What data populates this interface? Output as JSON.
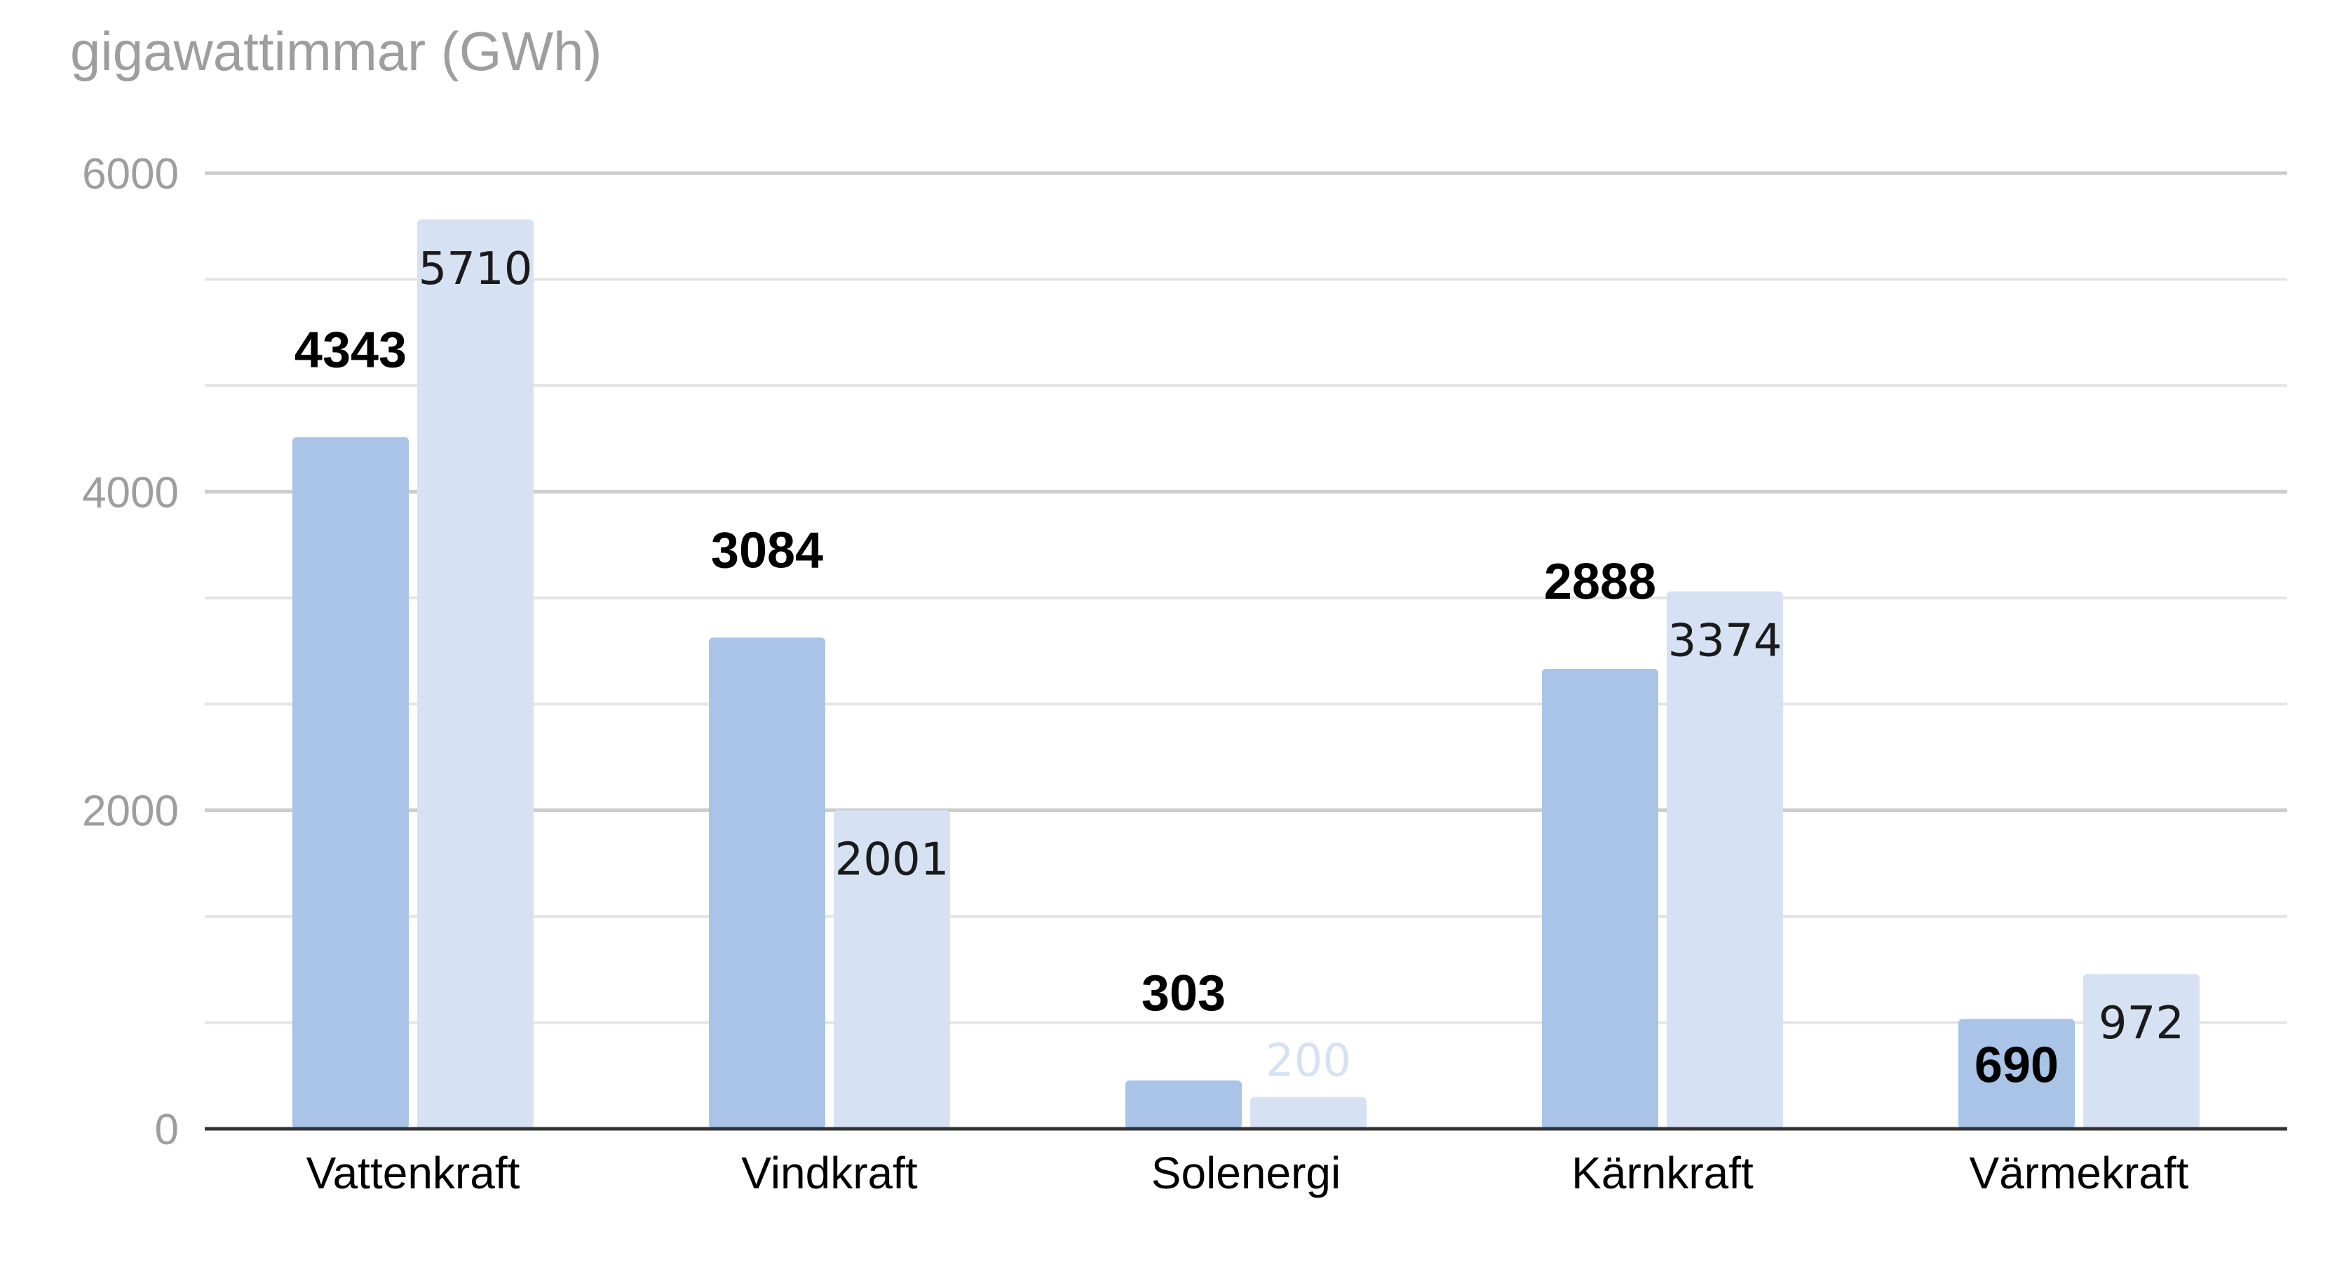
{
  "chart_data": {
    "type": "bar",
    "ylabel": "gigawattimmar (GWh)",
    "xlabel": "",
    "categories": [
      "Vattenkraft",
      "Vindkraft",
      "Solenergi",
      "Kärnkraft",
      "Värmekraft"
    ],
    "series": [
      {
        "values": [
          4343,
          3084,
          303,
          2888,
          690
        ],
        "color": "#aac4e7",
        "label_style": "bold"
      },
      {
        "values": [
          5710,
          2001,
          200,
          3374,
          972
        ],
        "color": "#d6e2f3",
        "label_style": "normal"
      }
    ],
    "ylim": [
      0,
      6000
    ],
    "yticks": [
      0,
      2000,
      4000,
      6000
    ],
    "minor_grid_step": 666.67,
    "grid": true,
    "legend": "none"
  }
}
